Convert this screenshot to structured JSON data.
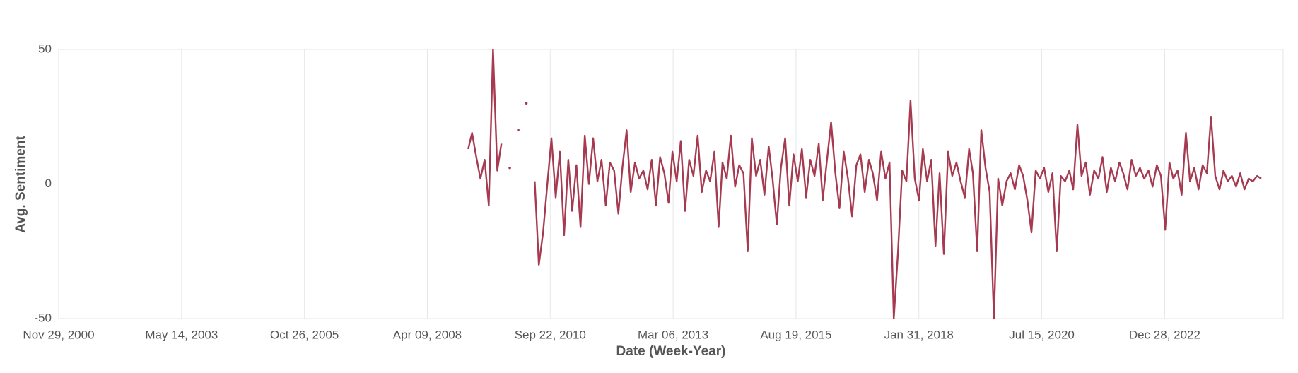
{
  "chart_data": {
    "type": "line",
    "x_label": "Date (Week-Year)",
    "y_label": "Avg. Sentiment",
    "x": [
      "2009-02-01",
      "2009-03-01",
      "2009-04-01",
      "2009-05-01",
      "2009-06-01",
      "2009-07-01",
      "2009-08-01",
      "2009-09-01",
      "2009-10-01",
      "2009-11-01",
      "2009-12-01",
      "2010-01-01",
      "2010-02-01",
      "2010-03-01",
      "2010-04-01",
      "2010-05-01",
      "2010-06-01",
      "2010-07-01",
      "2010-08-01",
      "2010-09-01",
      "2010-10-01",
      "2010-11-01",
      "2010-12-01",
      "2011-01-01",
      "2011-02-01",
      "2011-03-01",
      "2011-04-01",
      "2011-05-01",
      "2011-06-01",
      "2011-07-01",
      "2011-08-01",
      "2011-09-01",
      "2011-10-01",
      "2011-11-01",
      "2011-12-01",
      "2012-01-01",
      "2012-02-01",
      "2012-03-01",
      "2012-04-01",
      "2012-05-01",
      "2012-06-01",
      "2012-07-01",
      "2012-08-01",
      "2012-09-01",
      "2012-10-01",
      "2012-11-01",
      "2012-12-01",
      "2013-01-01",
      "2013-02-01",
      "2013-03-01",
      "2013-04-01",
      "2013-05-01",
      "2013-06-01",
      "2013-07-01",
      "2013-08-01",
      "2013-09-01",
      "2013-10-01",
      "2013-11-01",
      "2013-12-01",
      "2014-01-01",
      "2014-02-01",
      "2014-03-01",
      "2014-04-01",
      "2014-05-01",
      "2014-06-01",
      "2014-07-01",
      "2014-08-01",
      "2014-09-01",
      "2014-10-01",
      "2014-11-01",
      "2014-12-01",
      "2015-01-01",
      "2015-02-01",
      "2015-03-01",
      "2015-04-01",
      "2015-05-01",
      "2015-06-01",
      "2015-07-01",
      "2015-08-01",
      "2015-09-01",
      "2015-10-01",
      "2015-11-01",
      "2015-12-01",
      "2016-01-01",
      "2016-02-01",
      "2016-03-01",
      "2016-04-01",
      "2016-05-01",
      "2016-06-01",
      "2016-07-01",
      "2016-08-01",
      "2016-09-01",
      "2016-10-01",
      "2016-11-01",
      "2016-12-01",
      "2017-01-01",
      "2017-02-01",
      "2017-03-01",
      "2017-04-01",
      "2017-05-01",
      "2017-06-01",
      "2017-07-01",
      "2017-08-01",
      "2017-09-01",
      "2017-10-01",
      "2017-11-01",
      "2017-12-01",
      "2018-01-01",
      "2018-02-01",
      "2018-03-01",
      "2018-04-01",
      "2018-05-01",
      "2018-06-01",
      "2018-07-01",
      "2018-08-01",
      "2018-09-01",
      "2018-10-01",
      "2018-11-01",
      "2018-12-01",
      "2019-01-01",
      "2019-02-01",
      "2019-03-01",
      "2019-04-01",
      "2019-05-01",
      "2019-06-01",
      "2019-07-01",
      "2019-08-01",
      "2019-09-01",
      "2019-10-01",
      "2019-11-01",
      "2019-12-01",
      "2020-01-01",
      "2020-02-01",
      "2020-03-01",
      "2020-04-01",
      "2020-05-01",
      "2020-06-01",
      "2020-07-01",
      "2020-08-01",
      "2020-09-01",
      "2020-10-01",
      "2020-11-01",
      "2020-12-01",
      "2021-01-01",
      "2021-02-01",
      "2021-03-01",
      "2021-04-01",
      "2021-05-01",
      "2021-06-01",
      "2021-07-01",
      "2021-08-01",
      "2021-09-01",
      "2021-10-01",
      "2021-11-01",
      "2021-12-01",
      "2022-01-01",
      "2022-02-01",
      "2022-03-01",
      "2022-04-01",
      "2022-05-01",
      "2022-06-01",
      "2022-07-01",
      "2022-08-01",
      "2022-09-01",
      "2022-10-01",
      "2022-11-01",
      "2022-12-01",
      "2023-01-01",
      "2023-02-01",
      "2023-03-01",
      "2023-04-01",
      "2023-05-01",
      "2023-06-01",
      "2023-07-01",
      "2023-08-01",
      "2023-09-01",
      "2023-10-01",
      "2023-11-01",
      "2023-12-01",
      "2024-01-01",
      "2024-02-01",
      "2024-03-01",
      "2024-04-01",
      "2024-05-01",
      "2024-06-01",
      "2024-07-01",
      "2024-08-01",
      "2024-09-01",
      "2024-10-01",
      "2024-11-01",
      "2024-12-01"
    ],
    "values": [
      13,
      19,
      10,
      2,
      9,
      -8,
      50,
      5,
      15,
      null,
      6,
      null,
      20,
      null,
      30,
      null,
      1,
      -30,
      -18,
      0,
      17,
      -5,
      12,
      -19,
      9,
      -10,
      7,
      -16,
      18,
      0,
      17,
      1,
      9,
      -8,
      8,
      5,
      -11,
      6,
      20,
      -3,
      8,
      2,
      5,
      -2,
      9,
      -8,
      10,
      4,
      -7,
      12,
      1,
      16,
      -10,
      9,
      3,
      18,
      -3,
      5,
      1,
      12,
      -16,
      8,
      2,
      18,
      -1,
      7,
      4,
      -25,
      17,
      3,
      9,
      -4,
      14,
      2,
      -15,
      6,
      17,
      -8,
      11,
      1,
      13,
      -5,
      9,
      3,
      15,
      -6,
      9,
      23,
      4,
      -9,
      12,
      2,
      -12,
      7,
      11,
      -3,
      9,
      4,
      -6,
      12,
      2,
      8,
      -50,
      -25,
      5,
      1,
      31,
      2,
      -6,
      13,
      1,
      9,
      -23,
      4,
      -26,
      12,
      3,
      8,
      1,
      -5,
      13,
      4,
      -25,
      20,
      6,
      -3,
      -50,
      2,
      -8,
      1,
      4,
      -2,
      7,
      3,
      -6,
      -18,
      5,
      2,
      6,
      -3,
      4,
      -25,
      3,
      1,
      5,
      -2,
      22,
      3,
      8,
      -4,
      5,
      2,
      10,
      -3,
      6,
      1,
      8,
      4,
      -2,
      9,
      3,
      6,
      2,
      5,
      -1,
      7,
      3,
      -17,
      8,
      2,
      5,
      -4,
      19,
      1,
      6,
      -2,
      7,
      4,
      25,
      3,
      -2,
      5,
      1,
      3,
      -1,
      4,
      -2,
      2,
      1,
      3,
      2
    ],
    "color": "#a63a50",
    "xlim": [
      "2000-11-29",
      "2025-05-10"
    ],
    "xticks": [
      {
        "value": "2000-11-29",
        "label": "Nov 29, 2000"
      },
      {
        "value": "2003-05-14",
        "label": "May 14, 2003"
      },
      {
        "value": "2005-10-26",
        "label": "Oct 26, 2005"
      },
      {
        "value": "2008-04-09",
        "label": "Apr 09, 2008"
      },
      {
        "value": "2010-09-22",
        "label": "Sep 22, 2010"
      },
      {
        "value": "2013-03-06",
        "label": "Mar 06, 2013"
      },
      {
        "value": "2015-08-19",
        "label": "Aug 19, 2015"
      },
      {
        "value": "2018-01-31",
        "label": "Jan 31, 2018"
      },
      {
        "value": "2020-07-15",
        "label": "Jul 15, 2020"
      },
      {
        "value": "2022-12-28",
        "label": "Dec 28, 2022"
      }
    ],
    "ylim": [
      -50,
      50
    ],
    "yticks": [
      -50,
      0,
      50
    ],
    "grid": true
  }
}
